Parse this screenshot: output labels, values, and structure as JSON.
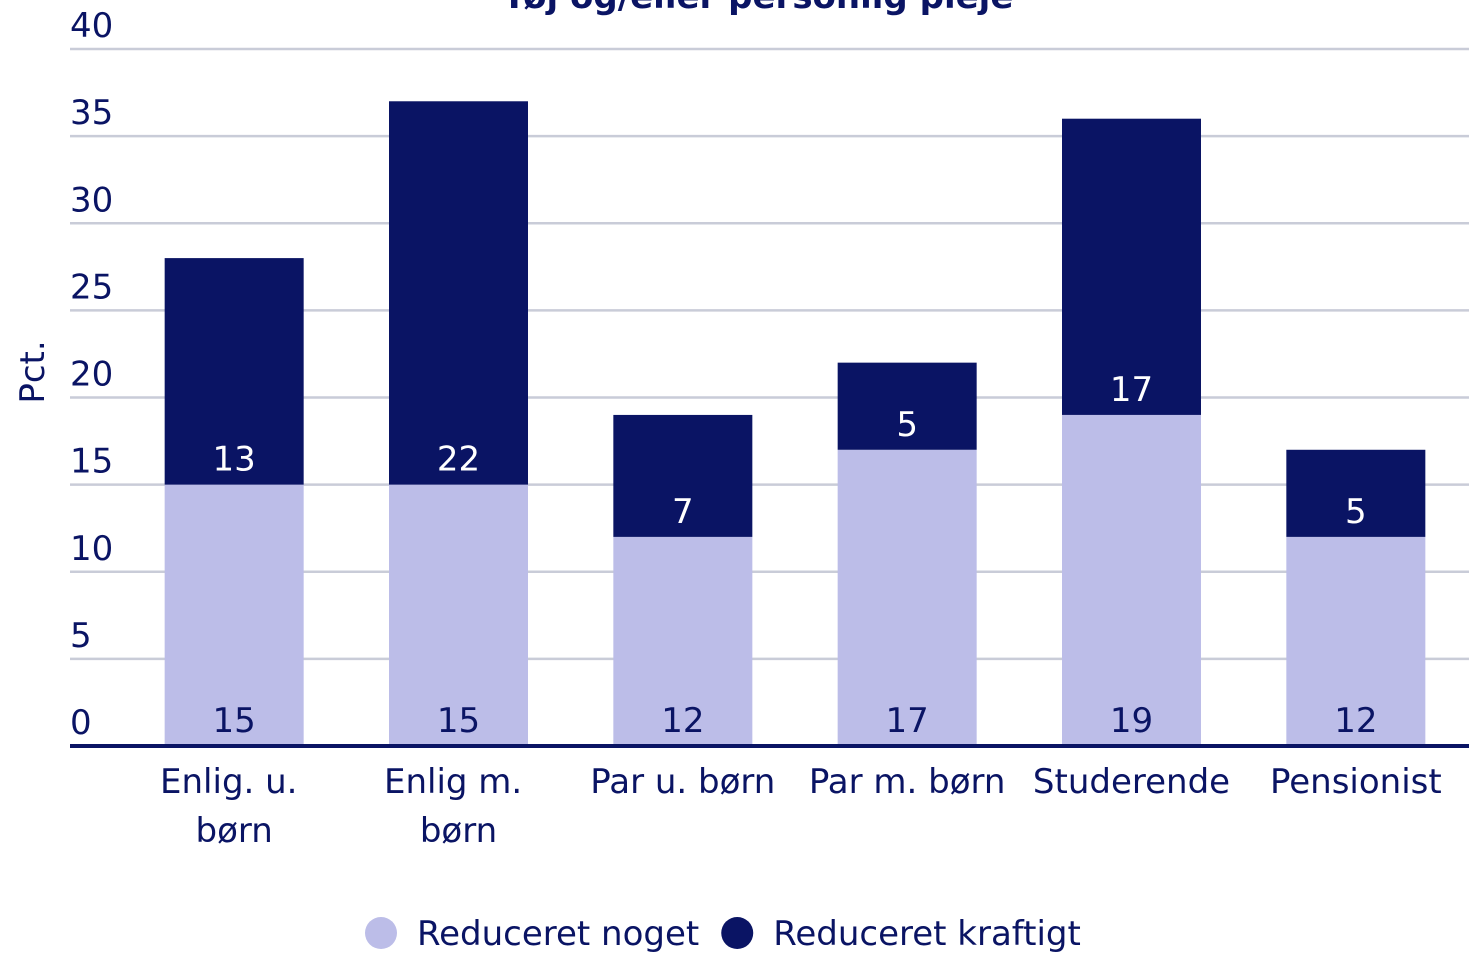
{
  "chart_data": {
    "type": "stacked_bar",
    "title": "Tøj og/eller personlig pleje",
    "y_label": "Pct.",
    "categories": [
      "Enlig. u. børn",
      "Enlig m. børn",
      "Par u. børn",
      "Par m. børn",
      "Studerende",
      "Pensionist"
    ],
    "series": [
      {
        "name": "Reduceret noget",
        "color": "#bcbde8",
        "label_color": "#0a1464",
        "values": [
          15,
          15,
          12,
          17,
          19,
          12
        ]
      },
      {
        "name": "Reduceret kraftigt",
        "color": "#0a1464",
        "label_color": "#ffffff",
        "values": [
          13,
          22,
          7,
          5,
          17,
          5
        ]
      }
    ],
    "ylim": [
      0,
      40
    ],
    "yticks": [
      0,
      5,
      10,
      15,
      20,
      25,
      30,
      35,
      40
    ],
    "grid": true,
    "legend": "bottom"
  }
}
